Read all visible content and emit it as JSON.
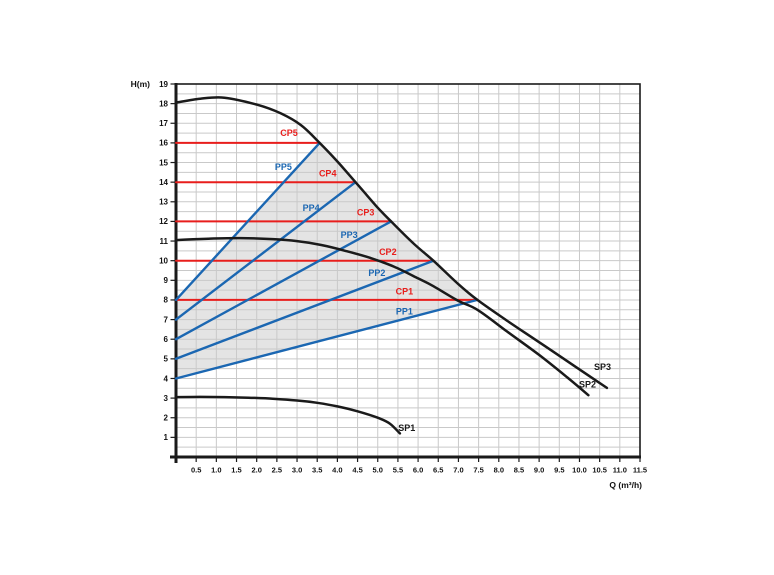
{
  "page": {
    "background": "#ffffff"
  },
  "chart_data": {
    "type": "line",
    "title": "",
    "xlabel": "Q (m³/h)",
    "ylabel": "H(m)",
    "xlim": [
      0,
      11.5
    ],
    "ylim": [
      0,
      19
    ],
    "grid_step": 0.5,
    "legend_position": "none",
    "x_tick_labels": [
      "0.5",
      "1.0",
      "1.5",
      "2.0",
      "2.5",
      "3.0",
      "3.5",
      "4.0",
      "4.5",
      "5.0",
      "5.5",
      "6.0",
      "6.5",
      "7.0",
      "7.5",
      "8.0",
      "8.5",
      "9.0",
      "9.5",
      "10.0",
      "10.5",
      "11.0",
      "11.5"
    ],
    "y_tick_labels": [
      "1",
      "2",
      "3",
      "4",
      "5",
      "6",
      "7",
      "8",
      "9",
      "10",
      "11",
      "12",
      "13",
      "14",
      "15",
      "16",
      "17",
      "18",
      "19"
    ],
    "colors": {
      "sp": "#1a1a1a",
      "pp": "#1b67b2",
      "cp": "#e81e1c",
      "grid": "#c9c9c9",
      "shade": "#e4e4e4",
      "frame": "#1a1a1a",
      "tick_text": "#111111"
    },
    "series": [
      {
        "name": "CP5",
        "group": "cp",
        "smooth": false,
        "width": 2.0,
        "points": [
          [
            0,
            16
          ],
          [
            3.56,
            16
          ]
        ]
      },
      {
        "name": "CP4",
        "group": "cp",
        "smooth": false,
        "width": 2.0,
        "points": [
          [
            0,
            14
          ],
          [
            4.45,
            14
          ]
        ]
      },
      {
        "name": "CP3",
        "group": "cp",
        "smooth": false,
        "width": 2.0,
        "points": [
          [
            0,
            12
          ],
          [
            5.33,
            12
          ]
        ]
      },
      {
        "name": "CP2",
        "group": "cp",
        "smooth": false,
        "width": 2.0,
        "points": [
          [
            0,
            10
          ],
          [
            6.38,
            10
          ]
        ]
      },
      {
        "name": "CP1",
        "group": "cp",
        "smooth": false,
        "width": 2.0,
        "points": [
          [
            0,
            8
          ],
          [
            7.47,
            8
          ]
        ]
      },
      {
        "name": "PP5",
        "group": "pp",
        "smooth": false,
        "width": 2.4,
        "points": [
          [
            0,
            8
          ],
          [
            3.56,
            16
          ]
        ]
      },
      {
        "name": "PP4",
        "group": "pp",
        "smooth": false,
        "width": 2.4,
        "points": [
          [
            0,
            7
          ],
          [
            4.45,
            14
          ]
        ]
      },
      {
        "name": "PP3",
        "group": "pp",
        "smooth": false,
        "width": 2.4,
        "points": [
          [
            0,
            6
          ],
          [
            5.33,
            12
          ]
        ]
      },
      {
        "name": "PP2",
        "group": "pp",
        "smooth": false,
        "width": 2.4,
        "points": [
          [
            0,
            5
          ],
          [
            6.38,
            10
          ]
        ]
      },
      {
        "name": "PP1",
        "group": "pp",
        "smooth": false,
        "width": 2.4,
        "points": [
          [
            0,
            4
          ],
          [
            7.47,
            8
          ]
        ]
      },
      {
        "name": "SP1",
        "group": "sp",
        "smooth": true,
        "width": 2.5,
        "points": [
          [
            0,
            3.05
          ],
          [
            0.6,
            3.06
          ],
          [
            1.2,
            3.05
          ],
          [
            1.8,
            3.02
          ],
          [
            2.4,
            2.97
          ],
          [
            3,
            2.88
          ],
          [
            3.5,
            2.76
          ],
          [
            4,
            2.58
          ],
          [
            4.5,
            2.33
          ],
          [
            5,
            2.0
          ],
          [
            5.3,
            1.7
          ],
          [
            5.55,
            1.2
          ]
        ]
      },
      {
        "name": "SP2",
        "group": "sp",
        "smooth": true,
        "width": 2.5,
        "points": [
          [
            0,
            11.05
          ],
          [
            0.8,
            11.12
          ],
          [
            1.6,
            11.15
          ],
          [
            2.4,
            11.1
          ],
          [
            3,
            11.0
          ],
          [
            3.6,
            10.8
          ],
          [
            4.2,
            10.5
          ],
          [
            4.8,
            10.15
          ],
          [
            5.4,
            9.7
          ],
          [
            6,
            9.1
          ],
          [
            6.38,
            8.7
          ],
          [
            7,
            7.95
          ],
          [
            7.47,
            7.5
          ],
          [
            8.2,
            6.4
          ],
          [
            9,
            5.2
          ],
          [
            9.7,
            4.05
          ],
          [
            10.22,
            3.15
          ]
        ]
      },
      {
        "name": "SP3",
        "group": "sp",
        "smooth": true,
        "width": 2.5,
        "points": [
          [
            0,
            18.05
          ],
          [
            0.6,
            18.25
          ],
          [
            1.2,
            18.3
          ],
          [
            2,
            17.95
          ],
          [
            2.6,
            17.5
          ],
          [
            3.1,
            16.9
          ],
          [
            3.56,
            16
          ],
          [
            4,
            15.05
          ],
          [
            4.45,
            14
          ],
          [
            5,
            12.7
          ],
          [
            5.33,
            12
          ],
          [
            5.9,
            10.85
          ],
          [
            6.38,
            10
          ],
          [
            7,
            8.8
          ],
          [
            7.47,
            8
          ],
          [
            8.2,
            6.95
          ],
          [
            9,
            5.85
          ],
          [
            9.9,
            4.6
          ],
          [
            10.68,
            3.52
          ]
        ]
      }
    ],
    "shade_polygon": [
      [
        0,
        4
      ],
      [
        7.47,
        8
      ],
      [
        7,
        8.8
      ],
      [
        6.38,
        10
      ],
      [
        5.9,
        10.85
      ],
      [
        5.33,
        12
      ],
      [
        5,
        12.7
      ],
      [
        4.45,
        14
      ],
      [
        4,
        15.05
      ],
      [
        3.56,
        16
      ],
      [
        0,
        8
      ]
    ],
    "labels": [
      {
        "text": "CP5",
        "x": 2.8,
        "y": 16.5,
        "color": "cp"
      },
      {
        "text": "PP5",
        "x": 2.66,
        "y": 14.78,
        "color": "pp"
      },
      {
        "text": "CP4",
        "x": 3.76,
        "y": 14.45,
        "color": "cp"
      },
      {
        "text": "PP4",
        "x": 3.35,
        "y": 12.68,
        "color": "pp"
      },
      {
        "text": "CP3",
        "x": 4.7,
        "y": 12.45,
        "color": "cp"
      },
      {
        "text": "PP3",
        "x": 4.29,
        "y": 11.3,
        "color": "pp"
      },
      {
        "text": "CP2",
        "x": 5.25,
        "y": 10.45,
        "color": "cp"
      },
      {
        "text": "PP2",
        "x": 4.98,
        "y": 9.38,
        "color": "pp"
      },
      {
        "text": "CP1",
        "x": 5.66,
        "y": 8.42,
        "color": "cp"
      },
      {
        "text": "PP1",
        "x": 5.66,
        "y": 7.42,
        "color": "pp"
      },
      {
        "text": "SP3",
        "x": 10.57,
        "y": 4.58,
        "color": "sp"
      },
      {
        "text": "SP2",
        "x": 10.2,
        "y": 3.7,
        "color": "sp"
      },
      {
        "text": "SP1",
        "x": 5.72,
        "y": 1.48,
        "color": "sp"
      }
    ]
  }
}
